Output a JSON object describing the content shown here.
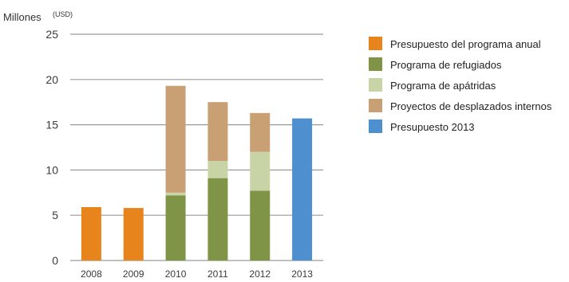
{
  "chart_data": {
    "type": "bar",
    "stacked": true,
    "ylabel": "Millones",
    "yunit": "(USD)",
    "ylim": [
      0,
      25
    ],
    "yticks": [
      "0",
      "5",
      "10",
      "15",
      "20",
      "25"
    ],
    "categories": [
      "2008",
      "2009",
      "2010",
      "2011",
      "2012",
      "2013"
    ],
    "grid": true,
    "legend_position": "right",
    "series": [
      {
        "name": "Presupuesto del programa anual",
        "color": "#E8841C",
        "values": [
          5.9,
          5.8,
          0,
          0,
          0,
          0
        ]
      },
      {
        "name": "Programa de refugiados",
        "color": "#7F9447",
        "values": [
          0,
          0,
          7.2,
          9.1,
          7.7,
          0
        ]
      },
      {
        "name": "Programa de apátridas",
        "color": "#C9D4A6",
        "values": [
          0,
          0,
          0.3,
          1.9,
          4.3,
          0
        ]
      },
      {
        "name": "Proyectos de desplazados internos",
        "color": "#C99F74",
        "values": [
          0,
          0,
          11.8,
          6.5,
          4.3,
          0
        ]
      },
      {
        "name": "Presupuesto 2013",
        "color": "#4E8FD0",
        "values": [
          0,
          0,
          0,
          0,
          0,
          15.7
        ]
      }
    ]
  }
}
